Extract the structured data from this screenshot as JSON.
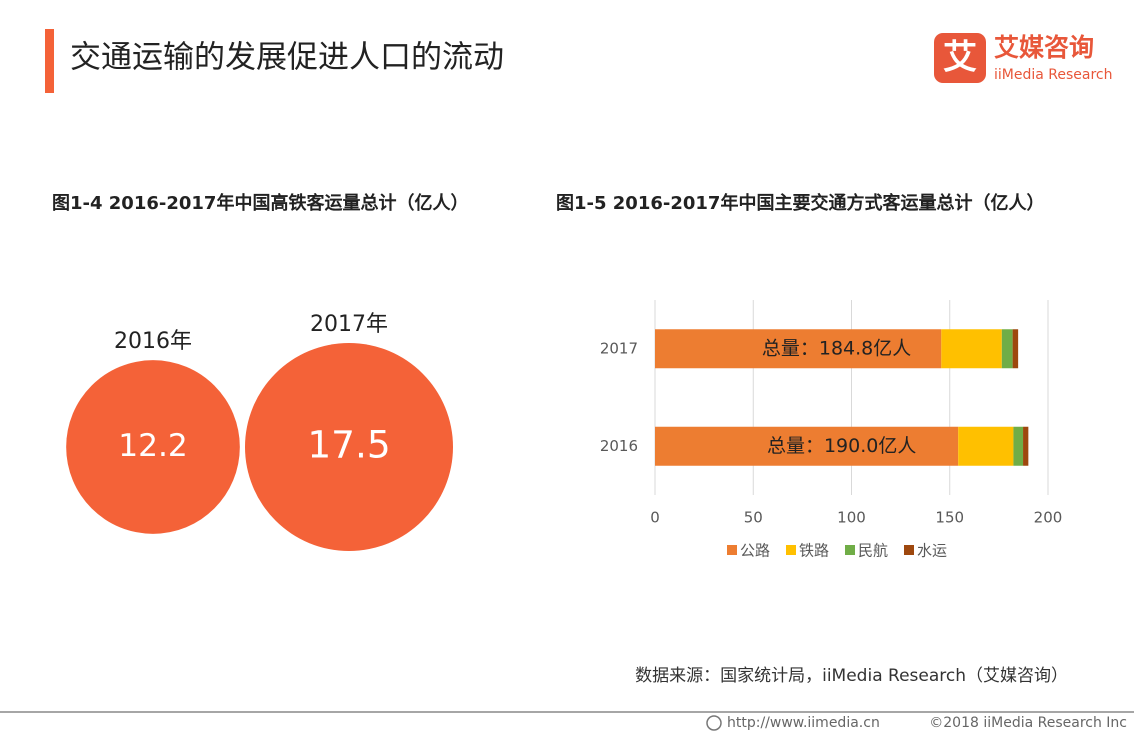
{
  "header": {
    "title": "交通运输的发展促进人口的流动",
    "logo_mark": "艾",
    "logo_text": "艾媒咨询",
    "logo_subtext": "iiMedia Research"
  },
  "chart_data": [
    {
      "type": "bubble",
      "title": "图1-4  2016-2017年中国高铁客运量总计（亿人）",
      "categories": [
        "2016年",
        "2017年"
      ],
      "values": [
        12.2,
        17.5
      ],
      "color": "#f46238"
    },
    {
      "type": "stacked-hbar",
      "title": "图1-5 2016-2017年中国主要交通方式客运量总计（亿人）",
      "categories": [
        "2016",
        "2017"
      ],
      "series": [
        {
          "name": "公路",
          "color": "#ed7d31",
          "values": [
            154.3,
            145.7
          ]
        },
        {
          "name": "铁路",
          "color": "#ffc000",
          "values": [
            28.1,
            30.8
          ]
        },
        {
          "name": "民航",
          "color": "#70ad47",
          "values": [
            4.9,
            5.5
          ]
        },
        {
          "name": "水运",
          "color": "#9e480e",
          "values": [
            2.7,
            2.8
          ]
        }
      ],
      "annotations": [
        "总量：190.0亿人",
        "总量：184.8亿人"
      ],
      "xlim": [
        0,
        200
      ],
      "xticks": [
        0,
        50,
        100,
        150,
        200
      ],
      "grid": true,
      "legend": "bottom"
    }
  ],
  "source": "数据来源：国家统计局，iiMedia Research（艾媒咨询）",
  "footer": {
    "url": "http://www.iimedia.cn",
    "copyright": "©2018  iiMedia Research  Inc"
  }
}
